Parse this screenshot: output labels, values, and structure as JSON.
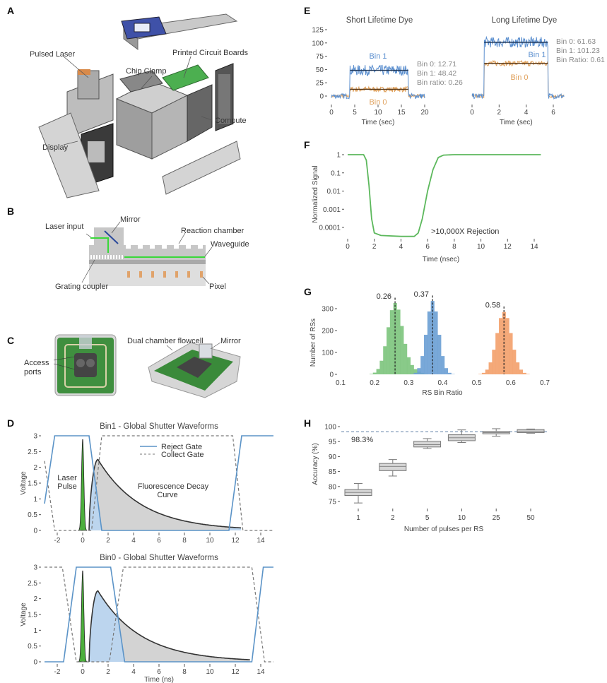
{
  "panels": {
    "A": {
      "label": "A",
      "callouts": [
        "Pulsed Laser",
        "Chip Clamp",
        "Printed Circuit Boards",
        "Compute",
        "Display"
      ]
    },
    "B": {
      "label": "B",
      "callouts": [
        "Laser input",
        "Mirror",
        "Reaction chamber",
        "Waveguide",
        "Grating coupler",
        "Pixel"
      ]
    },
    "C": {
      "label": "C",
      "callouts": [
        "Access",
        "ports",
        "Dual chamber flowcell",
        "Mirror"
      ]
    },
    "D": {
      "label": "D"
    },
    "E": {
      "label": "E"
    },
    "F": {
      "label": "F"
    },
    "G": {
      "label": "G"
    },
    "H": {
      "label": "H"
    }
  },
  "colors": {
    "reject_gate": "#5b93c7",
    "laser": "#4caf3c",
    "decay_fill": "#d3d3d3",
    "reject_fill": "#bcd5ee",
    "bin1": "#5b8fcf",
    "bin0": "#e0a25e",
    "green": "#5cb85c",
    "blue_hist": "#6a9fd4",
    "orange_hist": "#f3a06a",
    "waveguide": "#39d839"
  },
  "chart_data": [
    {
      "id": "D1",
      "type": "line",
      "title": "Bin1 - Global Shutter Waveforms",
      "xlabel": "",
      "ylabel": "Voltage",
      "xlim": [
        -3,
        15
      ],
      "ylim": [
        0,
        3
      ],
      "xticks": [
        -2,
        0,
        2,
        4,
        6,
        8,
        10,
        12,
        14
      ],
      "yticks": [
        0,
        0.5,
        1,
        1.5,
        2,
        2.5,
        3
      ],
      "legend": {
        "placement": "top-right",
        "entries": [
          "Reject Gate",
          "Collect Gate"
        ]
      },
      "annotations": [
        "Laser",
        "Pulse",
        "Fluorescence Decay",
        "Curve"
      ],
      "reject_gate": [
        [
          -3,
          0.85
        ],
        [
          -2.2,
          3
        ],
        [
          0.5,
          3
        ],
        [
          1.5,
          0
        ],
        [
          11.5,
          0
        ],
        [
          12.5,
          3
        ],
        [
          15,
          3
        ]
      ],
      "collect_gate": [
        [
          -3,
          2.2
        ],
        [
          -2.2,
          0
        ],
        [
          0.7,
          0
        ],
        [
          1.5,
          3
        ],
        [
          11.8,
          3
        ],
        [
          12.6,
          0
        ],
        [
          15,
          0
        ]
      ],
      "laser_pulse": {
        "center": 0,
        "peak": 2.9
      },
      "decay": {
        "start": 0.5,
        "peak_time": 1.2,
        "peak": 2.25,
        "end": 12.5
      }
    },
    {
      "id": "D0",
      "type": "line",
      "title": "Bin0 - Global Shutter Waveforms",
      "xlabel": "Time (ns)",
      "ylabel": "Voltage",
      "xlim": [
        -3,
        15
      ],
      "ylim": [
        0,
        3
      ],
      "xticks": [
        -2,
        0,
        2,
        4,
        6,
        8,
        10,
        12,
        14
      ],
      "yticks": [
        0,
        0.5,
        1,
        1.5,
        2,
        2.5,
        3
      ],
      "reject_gate": [
        [
          -3,
          0
        ],
        [
          -1.5,
          0
        ],
        [
          -0.5,
          3
        ],
        [
          2.2,
          3
        ],
        [
          3.3,
          0
        ],
        [
          13.3,
          0
        ],
        [
          14.2,
          3
        ],
        [
          15,
          3
        ]
      ],
      "collect_gate": [
        [
          -3,
          3
        ],
        [
          -1.6,
          3
        ],
        [
          -0.5,
          0
        ],
        [
          2.1,
          0
        ],
        [
          3.2,
          3
        ],
        [
          13.3,
          3
        ],
        [
          14.3,
          0
        ],
        [
          15,
          0
        ]
      ],
      "laser_pulse": {
        "center": 0,
        "peak": 2.9
      },
      "decay": {
        "start": 0.5,
        "peak_time": 1.2,
        "peak": 2.25,
        "end": 13.2
      }
    },
    {
      "id": "E1",
      "type": "line",
      "title": "Short Lifetime Dye",
      "xlabel": "Time (sec)",
      "xlim": [
        0,
        20
      ],
      "ylim": [
        -10,
        125
      ],
      "xticks": [
        0,
        5,
        10,
        15,
        20
      ],
      "yticks": [
        0,
        25,
        50,
        75,
        100,
        125
      ],
      "on_interval": [
        4,
        16.5
      ],
      "duration": 20,
      "series": [
        {
          "name": "Bin 1",
          "level": 48.42
        },
        {
          "name": "Bin 0",
          "level": 12.71
        }
      ],
      "stats": [
        "Bin 0: 12.71",
        "Bin 1: 48.42",
        "Bin ratio: 0.26"
      ]
    },
    {
      "id": "E2",
      "type": "line",
      "title": "Long Lifetime Dye",
      "xlabel": "Time (sec)",
      "xlim": [
        0,
        6.5
      ],
      "ylim": [
        -10,
        125
      ],
      "xticks": [
        0,
        2,
        4,
        6
      ],
      "on_interval": [
        0.9,
        5.6
      ],
      "duration": 6.8,
      "series": [
        {
          "name": "Bin 1",
          "level": 101.23
        },
        {
          "name": "Bin 0",
          "level": 61.63
        }
      ],
      "stats": [
        "Bin 0: 61.63",
        "Bin 1: 101.23",
        "Bin Ratio: 0.61"
      ]
    },
    {
      "id": "F",
      "type": "line",
      "xlabel": "Time (nsec)",
      "ylabel": "Normalized Signal",
      "yscale": "log",
      "xlim": [
        0,
        14.5
      ],
      "xticks": [
        0,
        2,
        4,
        6,
        8,
        10,
        12,
        14
      ],
      "yticks": [
        1,
        0.1,
        0.01,
        0.001,
        0.0001
      ],
      "ytick_labels": [
        "1",
        "0.1",
        "0.01",
        "0.001",
        "0.0001"
      ],
      "annotation": ">10,000X Rejection",
      "points": [
        [
          0,
          1
        ],
        [
          1.2,
          1
        ],
        [
          1.4,
          0.5
        ],
        [
          1.6,
          0.02
        ],
        [
          1.8,
          0.0003
        ],
        [
          2.0,
          5e-05
        ],
        [
          2.5,
          3.6e-05
        ],
        [
          4,
          3.2e-05
        ],
        [
          5,
          3.2e-05
        ],
        [
          5.3,
          5e-05
        ],
        [
          5.6,
          0.0003
        ],
        [
          6.0,
          0.01
        ],
        [
          6.4,
          0.15
        ],
        [
          6.8,
          0.7
        ],
        [
          7.2,
          0.95
        ],
        [
          8,
          1
        ],
        [
          14.5,
          1
        ]
      ]
    },
    {
      "id": "G",
      "type": "bar",
      "xlabel": "RS Bin Ratio",
      "ylabel": "Number of RSs",
      "xlim": [
        0.1,
        0.7
      ],
      "ylim": [
        0,
        350
      ],
      "xticks": [
        0.1,
        0.2,
        0.3,
        0.4,
        0.5,
        0.6,
        0.7
      ],
      "yticks": [
        0,
        100,
        200,
        300
      ],
      "bin_width": 0.01,
      "series": [
        {
          "mean": 0.26,
          "label": "0.26",
          "peak": 325,
          "std": 0.022,
          "color": "#7cc47c"
        },
        {
          "mean": 0.37,
          "label": "0.37",
          "peak": 335,
          "std": 0.018,
          "color": "#6a9fd4"
        },
        {
          "mean": 0.58,
          "label": "0.58",
          "peak": 285,
          "std": 0.022,
          "color": "#f3a06a"
        }
      ]
    },
    {
      "id": "H",
      "type": "box",
      "xlabel": "Number of pulses per RS",
      "ylabel": "Accuracy (%)",
      "ylim": [
        73,
        101
      ],
      "yticks": [
        75,
        80,
        85,
        90,
        95,
        100
      ],
      "categories": [
        "1",
        "2",
        "5",
        "10",
        "25",
        "50"
      ],
      "reference_line": 98.3,
      "reference_label": "98.3%",
      "boxes": [
        {
          "min": 74.5,
          "q1": 77,
          "median": 78,
          "q3": 79,
          "max": 81
        },
        {
          "min": 83.5,
          "q1": 85.3,
          "median": 86.7,
          "q3": 87.7,
          "max": 89
        },
        {
          "min": 92.7,
          "q1": 93.2,
          "median": 94,
          "q3": 95.1,
          "max": 96
        },
        {
          "min": 94.7,
          "q1": 95.3,
          "median": 96.3,
          "q3": 97.3,
          "max": 98.9
        },
        {
          "min": 96.8,
          "q1": 97.6,
          "median": 98,
          "q3": 98.4,
          "max": 99.3
        },
        {
          "min": 97.8,
          "q1": 98,
          "median": 98.5,
          "q3": 99,
          "max": 99.2
        }
      ]
    }
  ]
}
